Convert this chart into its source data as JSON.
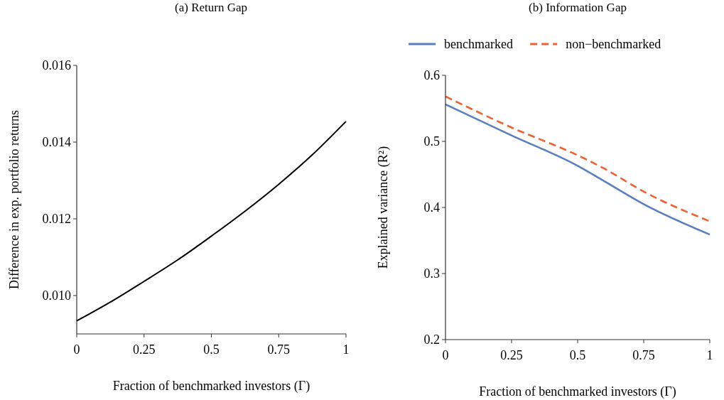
{
  "chart_data": [
    {
      "type": "line",
      "title": "(a) Return Gap",
      "xlabel": "Fraction of benchmarked investors (Γ)",
      "ylabel": "Difference in exp. portfolio returns",
      "xlim": [
        0,
        1
      ],
      "ylim": [
        0.009,
        0.016
      ],
      "xticks": [
        0,
        0.25,
        0.5,
        0.75,
        1
      ],
      "yticks": [
        {
          "value": 0.01,
          "label": "0.010"
        },
        0.012,
        0.014,
        0.016
      ],
      "x": [
        0,
        0.125,
        0.25,
        0.375,
        0.5,
        0.625,
        0.75,
        0.875,
        1
      ],
      "series": [
        {
          "color": "#000000",
          "values": [
            0.00934,
            0.00983,
            0.01037,
            0.01093,
            0.01155,
            0.0122,
            0.0129,
            0.01367,
            0.01454
          ]
        }
      ],
      "legend": false
    },
    {
      "type": "line",
      "title": "(b) Information Gap",
      "xlabel": "Fraction of benchmarked investors (Γ)",
      "ylabel": "Explained variance (R²)",
      "xlim": [
        0,
        1
      ],
      "ylim": [
        0.2,
        0.6
      ],
      "xticks": [
        0,
        0.25,
        0.5,
        0.75,
        1
      ],
      "yticks": [
        0.2,
        0.3,
        0.4,
        0.5,
        0.6
      ],
      "x": [
        0,
        0.25,
        0.5,
        0.6,
        0.75,
        1
      ],
      "series": [
        {
          "name": "benchmarked",
          "color": "#5b7fbd",
          "values": [
            0.556,
            0.509,
            0.463,
            0.44,
            0.405,
            0.359
          ],
          "line_style": "solid"
        },
        {
          "name": "non−benchmarked",
          "color": "#ee6134",
          "values": [
            0.568,
            0.521,
            0.479,
            0.459,
            0.424,
            0.379
          ],
          "line_style": "dashed"
        }
      ],
      "legend": "top"
    }
  ]
}
